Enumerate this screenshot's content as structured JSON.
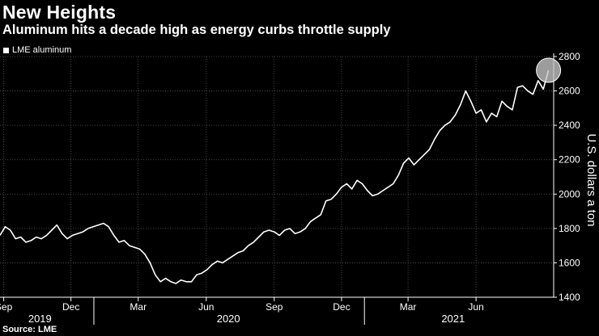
{
  "title": "New Heights",
  "subtitle": "Aluminum hits a decade high as energy curbs throttle supply",
  "source": "Source: LME",
  "chart_data": {
    "type": "line",
    "title": "New Heights",
    "subtitle": "Aluminum hits a decade high as energy curbs throttle supply",
    "ylabel": "U.S. dollars a ton",
    "ylim": [
      1400,
      2800
    ],
    "yticks": [
      1400,
      1600,
      1800,
      2000,
      2200,
      2400,
      2600,
      2800
    ],
    "y_axis_side": "right",
    "grid": true,
    "legend": "top-left",
    "xlim": [
      "2019-08-27",
      "2021-09-14"
    ],
    "month_ticks": [
      {
        "label": "Sep",
        "date": "2019-09-01"
      },
      {
        "label": "Dec",
        "date": "2019-12-01"
      },
      {
        "label": "Mar",
        "date": "2020-03-01"
      },
      {
        "label": "Jun",
        "date": "2020-06-01"
      },
      {
        "label": "Sep",
        "date": "2020-09-01"
      },
      {
        "label": "Dec",
        "date": "2020-12-01"
      },
      {
        "label": "Mar",
        "date": "2021-03-01"
      },
      {
        "label": "Jun",
        "date": "2021-06-01"
      }
    ],
    "year_labels": [
      {
        "label": "2019",
        "date": "2019-10-20"
      },
      {
        "label": "2020",
        "date": "2020-07-01"
      },
      {
        "label": "2021",
        "date": "2021-05-01"
      }
    ],
    "year_separators": [
      "2020-01-01",
      "2021-01-01"
    ],
    "highlight": {
      "date": "2021-09-07",
      "value": 2720
    },
    "series": [
      {
        "name": "LME aluminum",
        "color": "#ffffff",
        "x": [
          "2019-08-27",
          "2019-09-03",
          "2019-09-10",
          "2019-09-17",
          "2019-09-24",
          "2019-10-01",
          "2019-10-08",
          "2019-10-15",
          "2019-10-22",
          "2019-10-29",
          "2019-11-05",
          "2019-11-12",
          "2019-11-19",
          "2019-11-26",
          "2019-12-03",
          "2019-12-10",
          "2019-12-17",
          "2019-12-24",
          "2019-12-31",
          "2020-01-07",
          "2020-01-14",
          "2020-01-21",
          "2020-01-28",
          "2020-02-04",
          "2020-02-11",
          "2020-02-18",
          "2020-02-25",
          "2020-03-03",
          "2020-03-10",
          "2020-03-17",
          "2020-03-24",
          "2020-03-31",
          "2020-04-07",
          "2020-04-14",
          "2020-04-21",
          "2020-04-28",
          "2020-05-05",
          "2020-05-12",
          "2020-05-19",
          "2020-05-26",
          "2020-06-02",
          "2020-06-09",
          "2020-06-16",
          "2020-06-23",
          "2020-06-30",
          "2020-07-07",
          "2020-07-14",
          "2020-07-21",
          "2020-07-28",
          "2020-08-04",
          "2020-08-11",
          "2020-08-18",
          "2020-08-25",
          "2020-09-01",
          "2020-09-08",
          "2020-09-15",
          "2020-09-22",
          "2020-09-29",
          "2020-10-06",
          "2020-10-13",
          "2020-10-20",
          "2020-10-27",
          "2020-11-03",
          "2020-11-10",
          "2020-11-17",
          "2020-11-24",
          "2020-12-01",
          "2020-12-08",
          "2020-12-15",
          "2020-12-22",
          "2020-12-29",
          "2021-01-05",
          "2021-01-12",
          "2021-01-19",
          "2021-01-26",
          "2021-02-02",
          "2021-02-09",
          "2021-02-16",
          "2021-02-23",
          "2021-03-02",
          "2021-03-09",
          "2021-03-16",
          "2021-03-23",
          "2021-03-30",
          "2021-04-06",
          "2021-04-13",
          "2021-04-20",
          "2021-04-27",
          "2021-05-04",
          "2021-05-11",
          "2021-05-18",
          "2021-05-25",
          "2021-06-01",
          "2021-06-08",
          "2021-06-15",
          "2021-06-22",
          "2021-06-29",
          "2021-07-06",
          "2021-07-13",
          "2021-07-20",
          "2021-07-27",
          "2021-08-03",
          "2021-08-10",
          "2021-08-17",
          "2021-08-24",
          "2021-08-31",
          "2021-09-07"
        ],
        "values": [
          1760,
          1810,
          1790,
          1740,
          1750,
          1720,
          1730,
          1750,
          1740,
          1760,
          1790,
          1820,
          1770,
          1740,
          1760,
          1770,
          1780,
          1800,
          1810,
          1820,
          1830,
          1810,
          1760,
          1720,
          1730,
          1700,
          1690,
          1680,
          1650,
          1600,
          1530,
          1490,
          1510,
          1490,
          1480,
          1500,
          1490,
          1490,
          1530,
          1540,
          1560,
          1590,
          1610,
          1600,
          1620,
          1640,
          1660,
          1670,
          1700,
          1720,
          1750,
          1780,
          1790,
          1780,
          1760,
          1790,
          1800,
          1770,
          1780,
          1800,
          1840,
          1860,
          1880,
          1960,
          1970,
          2000,
          2040,
          2060,
          2030,
          2080,
          2060,
          2020,
          1990,
          2000,
          2020,
          2040,
          2060,
          2110,
          2180,
          2210,
          2170,
          2200,
          2230,
          2260,
          2320,
          2370,
          2400,
          2420,
          2460,
          2520,
          2600,
          2540,
          2470,
          2490,
          2420,
          2470,
          2450,
          2540,
          2510,
          2490,
          2620,
          2630,
          2600,
          2580,
          2660,
          2610,
          2720
        ]
      }
    ]
  }
}
